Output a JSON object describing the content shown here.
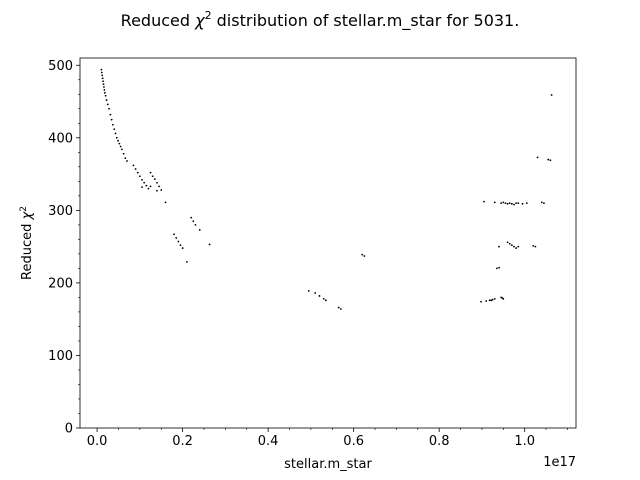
{
  "chart_data": {
    "type": "scatter",
    "title": "Reduced χ² distribution of stellar.m_star for 5031.",
    "title_main": "Reduced ",
    "title_chi": "χ",
    "title_sup": "2",
    "title_rest": " distribution of stellar.m_star for 5031.",
    "xlabel": "stellar.m_star",
    "ylabel": "Reduced χ²",
    "ylabel_main": "Reduced ",
    "ylabel_chi": "χ",
    "ylabel_sup": "2",
    "x_offset_label": "1e17",
    "x_scale_factor": 1e+17,
    "xlim": [
      -0.04,
      1.12
    ],
    "ylim": [
      0,
      510
    ],
    "x_ticks": [
      0.0,
      0.2,
      0.4,
      0.6,
      0.8,
      1.0
    ],
    "x_tick_labels": [
      "0.0",
      "0.2",
      "0.4",
      "0.6",
      "0.8",
      "1.0"
    ],
    "y_ticks": [
      0,
      100,
      200,
      300,
      400,
      500
    ],
    "y_tick_labels": [
      "0",
      "100",
      "200",
      "300",
      "400",
      "500"
    ],
    "grid": false,
    "legend": "none",
    "marker_color": "#000000",
    "series": [
      {
        "x": [
          0.01,
          0.011,
          0.012,
          0.013,
          0.014,
          0.015,
          0.016,
          0.017,
          0.018,
          0.02,
          0.022,
          0.025,
          0.028,
          0.031,
          0.034,
          0.037,
          0.04,
          0.043,
          0.046,
          0.049,
          0.052,
          0.055,
          0.058,
          0.062,
          0.066,
          0.07,
          0.085,
          0.09,
          0.095,
          0.1,
          0.105,
          0.11,
          0.115,
          0.12,
          0.125,
          0.13,
          0.135,
          0.14,
          0.145,
          0.15,
          0.16,
          0.105,
          0.125,
          0.14,
          0.18,
          0.185,
          0.19,
          0.195,
          0.2,
          0.21,
          0.22,
          0.225,
          0.23,
          0.24,
          0.263,
          0.495,
          0.51,
          0.52,
          0.53,
          0.535,
          0.565,
          0.57,
          0.62,
          0.625,
          0.898,
          0.91,
          0.918,
          0.922,
          0.925,
          0.93,
          0.935,
          0.94,
          0.945,
          0.948,
          0.95,
          0.905,
          0.93,
          0.94,
          0.945,
          0.95,
          0.955,
          0.96,
          0.965,
          0.97,
          0.975,
          0.98,
          0.985,
          0.995,
          1.005,
          0.96,
          0.965,
          0.97,
          0.975,
          0.98,
          0.985,
          1.02,
          1.025,
          1.03,
          1.04,
          1.045,
          1.055,
          1.06,
          1.063
        ],
        "y": [
          494,
          490,
          486,
          482,
          478,
          474,
          470,
          466,
          462,
          458,
          452,
          446,
          440,
          432,
          425,
          418,
          412,
          406,
          400,
          396,
          392,
          388,
          384,
          378,
          372,
          368,
          362,
          357,
          352,
          347,
          342,
          338,
          334,
          330,
          352,
          347,
          343,
          338,
          333,
          328,
          311,
          332,
          333,
          327,
          267,
          262,
          257,
          252,
          248,
          229,
          290,
          285,
          280,
          273,
          253,
          189,
          186,
          182,
          178,
          176,
          166,
          164,
          239,
          237,
          174,
          175,
          176,
          176,
          177,
          178,
          220,
          221,
          180,
          179,
          178,
          312,
          311,
          250,
          310,
          311,
          310,
          309,
          310,
          309,
          308,
          310,
          310,
          309,
          310,
          256,
          254,
          252,
          250,
          248,
          250,
          251,
          250,
          373,
          311,
          310,
          370,
          369,
          459
        ]
      }
    ]
  }
}
